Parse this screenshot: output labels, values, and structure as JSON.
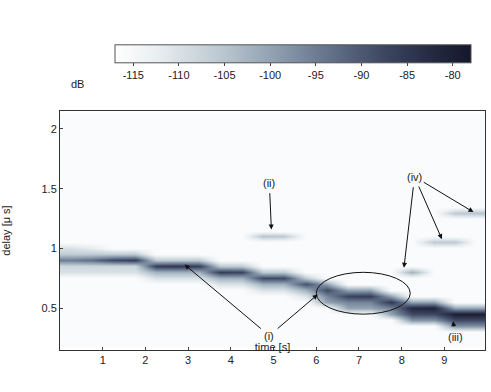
{
  "chart_data": {
    "type": "heatmap",
    "xlabel": "time [s]",
    "ylabel": "delay [μ s]",
    "xlim": [
      0,
      9.95
    ],
    "ylim": [
      0.15,
      2.15
    ],
    "xticks": [
      1,
      2,
      3,
      4,
      5,
      6,
      7,
      8,
      9
    ],
    "yticks": [
      0.5,
      1,
      1.5,
      2
    ],
    "x": [
      0.25,
      0.75,
      1.25,
      1.75,
      2.25,
      2.75,
      3.25,
      3.75,
      4.25,
      4.75,
      5.25,
      5.75,
      6.25,
      6.75,
      7.25,
      7.75,
      8.25,
      8.75,
      9.25,
      9.75
    ],
    "y": [
      0.2,
      0.25,
      0.3,
      0.35,
      0.4,
      0.45,
      0.5,
      0.55,
      0.6,
      0.65,
      0.7,
      0.75,
      0.8,
      0.85,
      0.9,
      0.95,
      1.0,
      1.05,
      1.1,
      1.15,
      1.2,
      1.25,
      1.3,
      1.35,
      1.4,
      1.45,
      1.5,
      1.55,
      1.6,
      1.65,
      1.7,
      1.75,
      1.8,
      1.85,
      1.9,
      1.95,
      2.0,
      2.05,
      2.1
    ],
    "z": [
      [
        -116,
        -116,
        -116,
        -116,
        -116,
        -116,
        -116,
        -116,
        -116,
        -116,
        -116,
        -116,
        -116,
        -116,
        -116,
        -116,
        -116,
        -116,
        -116,
        -116
      ],
      [
        -116,
        -116,
        -116,
        -116,
        -116,
        -116,
        -116,
        -116,
        -116,
        -116,
        -116,
        -116,
        -116,
        -116,
        -116,
        -116,
        -116,
        -116,
        -116,
        -116
      ],
      [
        -116,
        -116,
        -116,
        -116,
        -116,
        -116,
        -116,
        -116,
        -116,
        -116,
        -116,
        -116,
        -116,
        -116,
        -116,
        -116,
        -116,
        -116,
        -116,
        -116
      ],
      [
        -116,
        -116,
        -116,
        -116,
        -116,
        -116,
        -116,
        -116,
        -116,
        -116,
        -116,
        -116,
        -116,
        -116,
        -116,
        -116,
        -116,
        -116,
        -98,
        -98
      ],
      [
        -116,
        -116,
        -116,
        -116,
        -116,
        -116,
        -116,
        -116,
        -116,
        -116,
        -116,
        -116,
        -116,
        -116,
        -116,
        -116,
        -98,
        -98,
        -88,
        -88
      ],
      [
        -116,
        -116,
        -116,
        -116,
        -116,
        -116,
        -116,
        -116,
        -116,
        -116,
        -116,
        -116,
        -116,
        -116,
        -116,
        -100,
        -88,
        -88,
        -80,
        -80
      ],
      [
        -116,
        -116,
        -116,
        -116,
        -116,
        -116,
        -116,
        -116,
        -116,
        -116,
        -116,
        -116,
        -116,
        -100,
        -100,
        -96,
        -82,
        -81,
        -100,
        -100
      ],
      [
        -116,
        -116,
        -116,
        -116,
        -116,
        -116,
        -116,
        -116,
        -116,
        -116,
        -116,
        -116,
        -100,
        -96,
        -96,
        -85,
        -100,
        -100,
        -116,
        -116
      ],
      [
        -116,
        -116,
        -116,
        -116,
        -116,
        -116,
        -116,
        -116,
        -116,
        -116,
        -116,
        -110,
        -96,
        -87,
        -86,
        -100,
        -116,
        -116,
        -116,
        -116
      ],
      [
        -116,
        -116,
        -116,
        -116,
        -116,
        -116,
        -116,
        -116,
        -116,
        -110,
        -110,
        -102,
        -88,
        -100,
        -100,
        -116,
        -116,
        -116,
        -116,
        -116
      ],
      [
        -116,
        -116,
        -116,
        -116,
        -116,
        -116,
        -116,
        -110,
        -110,
        -102,
        -102,
        -89,
        -100,
        -116,
        -116,
        -116,
        -116,
        -116,
        -116,
        -116
      ],
      [
        -116,
        -116,
        -116,
        -116,
        -110,
        -110,
        -110,
        -102,
        -102,
        -88,
        -88,
        -106,
        -116,
        -116,
        -116,
        -116,
        -116,
        -116,
        -116,
        -116
      ],
      [
        -110,
        -110,
        -110,
        -110,
        -102,
        -102,
        -102,
        -86,
        -87,
        -106,
        -106,
        -116,
        -116,
        -116,
        -116,
        -116,
        -102,
        -116,
        -116,
        -116
      ],
      [
        -108,
        -108,
        -108,
        -108,
        -86,
        -85,
        -86,
        -106,
        -106,
        -116,
        -116,
        -116,
        -116,
        -116,
        -116,
        -116,
        -116,
        -116,
        -116,
        -116
      ],
      [
        -95,
        -93,
        -88,
        -86,
        -106,
        -106,
        -106,
        -116,
        -116,
        -116,
        -116,
        -116,
        -116,
        -116,
        -116,
        -116,
        -116,
        -116,
        -116,
        -116
      ],
      [
        -106,
        -106,
        -106,
        -106,
        -116,
        -116,
        -116,
        -116,
        -116,
        -116,
        -116,
        -116,
        -116,
        -116,
        -116,
        -116,
        -116,
        -116,
        -116,
        -116
      ],
      [
        -110,
        -112,
        -116,
        -116,
        -116,
        -116,
        -116,
        -116,
        -116,
        -116,
        -116,
        -116,
        -116,
        -116,
        -116,
        -116,
        -116,
        -116,
        -116,
        -116
      ],
      [
        -116,
        -116,
        -116,
        -116,
        -116,
        -116,
        -116,
        -116,
        -116,
        -116,
        -116,
        -116,
        -116,
        -116,
        -116,
        -116,
        -116,
        -106,
        -106,
        -116
      ],
      [
        -116,
        -116,
        -116,
        -116,
        -116,
        -116,
        -116,
        -116,
        -116,
        -105,
        -106,
        -116,
        -116,
        -116,
        -116,
        -116,
        -116,
        -116,
        -116,
        -116
      ],
      [
        -116,
        -116,
        -116,
        -116,
        -116,
        -116,
        -116,
        -116,
        -116,
        -116,
        -116,
        -116,
        -116,
        -116,
        -116,
        -116,
        -116,
        -116,
        -116,
        -116
      ],
      [
        -116,
        -116,
        -116,
        -116,
        -116,
        -116,
        -116,
        -116,
        -116,
        -116,
        -116,
        -116,
        -116,
        -116,
        -116,
        -116,
        -116,
        -116,
        -116,
        -116
      ],
      [
        -116,
        -116,
        -116,
        -116,
        -116,
        -116,
        -116,
        -116,
        -116,
        -116,
        -116,
        -116,
        -116,
        -116,
        -116,
        -116,
        -116,
        -116,
        -116,
        -116
      ],
      [
        -116,
        -116,
        -116,
        -116,
        -116,
        -116,
        -116,
        -116,
        -116,
        -116,
        -116,
        -116,
        -116,
        -116,
        -116,
        -116,
        -116,
        -116,
        -106,
        -105
      ],
      [
        -116,
        -116,
        -116,
        -116,
        -116,
        -116,
        -116,
        -116,
        -116,
        -116,
        -116,
        -116,
        -116,
        -116,
        -116,
        -116,
        -116,
        -116,
        -116,
        -116
      ],
      [
        -116,
        -116,
        -116,
        -116,
        -116,
        -116,
        -116,
        -116,
        -116,
        -116,
        -116,
        -116,
        -116,
        -116,
        -116,
        -116,
        -116,
        -116,
        -116,
        -116
      ],
      [
        -116,
        -116,
        -116,
        -116,
        -116,
        -116,
        -116,
        -116,
        -116,
        -116,
        -116,
        -116,
        -116,
        -116,
        -116,
        -116,
        -116,
        -116,
        -116,
        -116
      ],
      [
        -116,
        -116,
        -116,
        -116,
        -116,
        -116,
        -116,
        -116,
        -116,
        -116,
        -116,
        -116,
        -116,
        -116,
        -116,
        -116,
        -116,
        -116,
        -116,
        -116
      ],
      [
        -116,
        -116,
        -116,
        -116,
        -116,
        -116,
        -116,
        -116,
        -116,
        -116,
        -116,
        -116,
        -116,
        -116,
        -116,
        -116,
        -116,
        -116,
        -116,
        -116
      ],
      [
        -116,
        -116,
        -116,
        -116,
        -116,
        -116,
        -116,
        -116,
        -116,
        -116,
        -116,
        -116,
        -116,
        -116,
        -116,
        -116,
        -116,
        -116,
        -116,
        -116
      ],
      [
        -116,
        -116,
        -116,
        -116,
        -116,
        -116,
        -116,
        -116,
        -116,
        -116,
        -116,
        -116,
        -116,
        -116,
        -116,
        -116,
        -116,
        -116,
        -116,
        -116
      ],
      [
        -116,
        -116,
        -116,
        -116,
        -116,
        -116,
        -116,
        -116,
        -116,
        -116,
        -116,
        -116,
        -116,
        -116,
        -116,
        -116,
        -116,
        -116,
        -116,
        -116
      ],
      [
        -116,
        -116,
        -116,
        -116,
        -116,
        -116,
        -116,
        -116,
        -116,
        -116,
        -116,
        -116,
        -116,
        -116,
        -116,
        -116,
        -116,
        -116,
        -116,
        -116
      ],
      [
        -116,
        -116,
        -116,
        -116,
        -116,
        -116,
        -116,
        -116,
        -116,
        -116,
        -116,
        -116,
        -116,
        -116,
        -116,
        -116,
        -116,
        -116,
        -116,
        -116
      ],
      [
        -116,
        -116,
        -116,
        -116,
        -116,
        -116,
        -116,
        -116,
        -116,
        -116,
        -116,
        -116,
        -116,
        -116,
        -116,
        -116,
        -116,
        -116,
        -116,
        -116
      ],
      [
        -116,
        -116,
        -116,
        -116,
        -116,
        -116,
        -116,
        -116,
        -116,
        -116,
        -116,
        -116,
        -116,
        -116,
        -116,
        -116,
        -116,
        -116,
        -116,
        -116
      ],
      [
        -116,
        -116,
        -116,
        -116,
        -116,
        -116,
        -116,
        -116,
        -116,
        -116,
        -116,
        -116,
        -116,
        -116,
        -116,
        -116,
        -116,
        -116,
        -116,
        -116
      ],
      [
        -116,
        -116,
        -116,
        -116,
        -116,
        -116,
        -116,
        -116,
        -116,
        -116,
        -116,
        -116,
        -116,
        -116,
        -116,
        -116,
        -116,
        -116,
        -116,
        -116
      ],
      [
        -116,
        -116,
        -116,
        -116,
        -116,
        -116,
        -116,
        -116,
        -116,
        -116,
        -116,
        -116,
        -116,
        -116,
        -116,
        -116,
        -116,
        -116,
        -116,
        -116
      ],
      [
        -116,
        -116,
        -116,
        -116,
        -116,
        -116,
        -116,
        -116,
        -116,
        -116,
        -116,
        -116,
        -116,
        -116,
        -116,
        -116,
        -116,
        -116,
        -116,
        -116
      ]
    ],
    "colorbar": {
      "title": "dB",
      "range": [
        -117,
        -78
      ],
      "ticks": [
        -115,
        -110,
        -105,
        -100,
        -95,
        -90,
        -85,
        -80
      ]
    },
    "annotations": [
      {
        "text": "(i)",
        "x": 4.9,
        "y": 0.27,
        "targets": [
          [
            2.9,
            0.87
          ],
          [
            6.05,
            0.62
          ]
        ]
      },
      {
        "text": "(ii)",
        "x": 4.9,
        "y": 1.55,
        "targets": [
          [
            4.95,
            1.15
          ]
        ]
      },
      {
        "text": "(iii)",
        "x": 9.25,
        "y": 0.26,
        "targets": [
          [
            9.2,
            0.4
          ]
        ]
      },
      {
        "text": "(iv)",
        "x": 8.3,
        "y": 1.6,
        "targets": [
          [
            9.7,
            1.3
          ],
          [
            8.95,
            1.07
          ],
          [
            8.05,
            0.83
          ]
        ]
      }
    ],
    "ellipse": {
      "x": [
        6.0,
        8.2
      ],
      "y": [
        0.45,
        0.8
      ]
    }
  }
}
